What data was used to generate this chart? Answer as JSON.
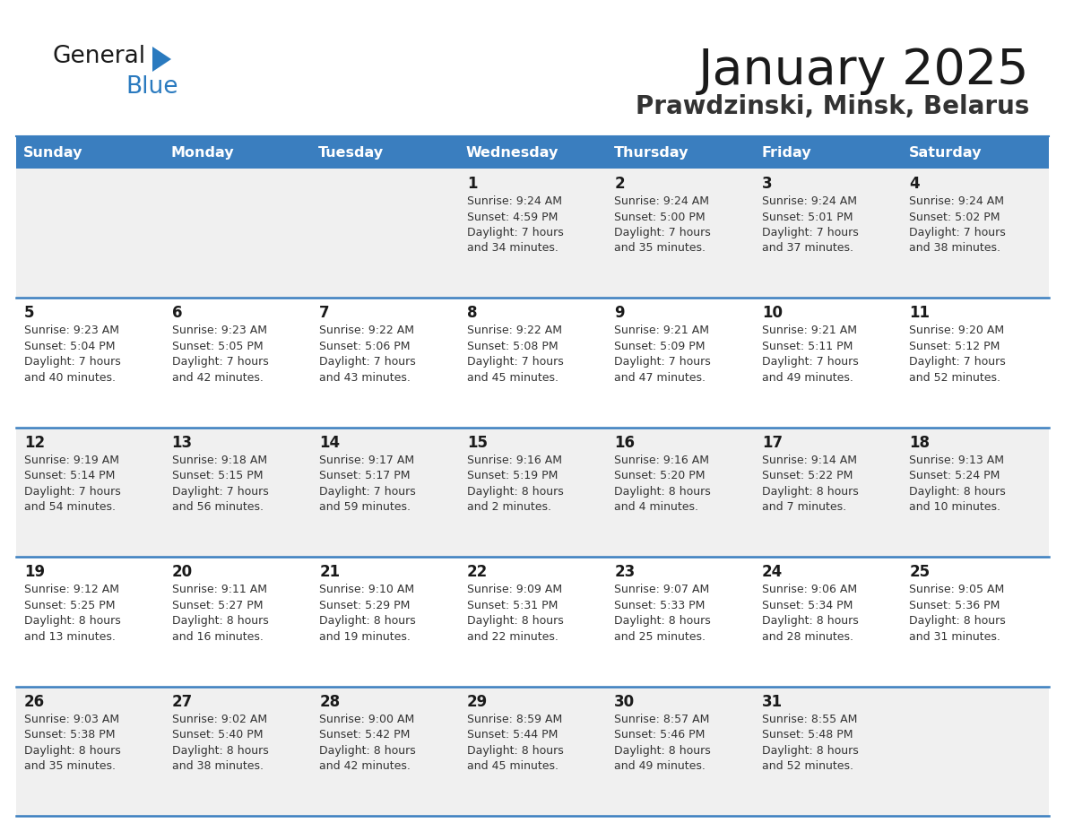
{
  "title": "January 2025",
  "subtitle": "Prawdzinski, Minsk, Belarus",
  "days_of_week": [
    "Sunday",
    "Monday",
    "Tuesday",
    "Wednesday",
    "Thursday",
    "Friday",
    "Saturday"
  ],
  "header_bg": "#3a7ebf",
  "header_text": "#ffffff",
  "cell_bg_odd": "#f0f0f0",
  "cell_bg_even": "#ffffff",
  "divider_color": "#3a7ebf",
  "text_color": "#333333",
  "title_color": "#1a1a1a",
  "subtitle_color": "#333333",
  "logo_text_color": "#1a1a1a",
  "logo_blue_color": "#2a7abf",
  "calendar_data": [
    [
      {
        "day": null,
        "sunrise": null,
        "sunset": null,
        "daylight_line1": null,
        "daylight_line2": null
      },
      {
        "day": null,
        "sunrise": null,
        "sunset": null,
        "daylight_line1": null,
        "daylight_line2": null
      },
      {
        "day": null,
        "sunrise": null,
        "sunset": null,
        "daylight_line1": null,
        "daylight_line2": null
      },
      {
        "day": "1",
        "sunrise": "9:24 AM",
        "sunset": "4:59 PM",
        "daylight_line1": "Daylight: 7 hours",
        "daylight_line2": "and 34 minutes."
      },
      {
        "day": "2",
        "sunrise": "9:24 AM",
        "sunset": "5:00 PM",
        "daylight_line1": "Daylight: 7 hours",
        "daylight_line2": "and 35 minutes."
      },
      {
        "day": "3",
        "sunrise": "9:24 AM",
        "sunset": "5:01 PM",
        "daylight_line1": "Daylight: 7 hours",
        "daylight_line2": "and 37 minutes."
      },
      {
        "day": "4",
        "sunrise": "9:24 AM",
        "sunset": "5:02 PM",
        "daylight_line1": "Daylight: 7 hours",
        "daylight_line2": "and 38 minutes."
      }
    ],
    [
      {
        "day": "5",
        "sunrise": "9:23 AM",
        "sunset": "5:04 PM",
        "daylight_line1": "Daylight: 7 hours",
        "daylight_line2": "and 40 minutes."
      },
      {
        "day": "6",
        "sunrise": "9:23 AM",
        "sunset": "5:05 PM",
        "daylight_line1": "Daylight: 7 hours",
        "daylight_line2": "and 42 minutes."
      },
      {
        "day": "7",
        "sunrise": "9:22 AM",
        "sunset": "5:06 PM",
        "daylight_line1": "Daylight: 7 hours",
        "daylight_line2": "and 43 minutes."
      },
      {
        "day": "8",
        "sunrise": "9:22 AM",
        "sunset": "5:08 PM",
        "daylight_line1": "Daylight: 7 hours",
        "daylight_line2": "and 45 minutes."
      },
      {
        "day": "9",
        "sunrise": "9:21 AM",
        "sunset": "5:09 PM",
        "daylight_line1": "Daylight: 7 hours",
        "daylight_line2": "and 47 minutes."
      },
      {
        "day": "10",
        "sunrise": "9:21 AM",
        "sunset": "5:11 PM",
        "daylight_line1": "Daylight: 7 hours",
        "daylight_line2": "and 49 minutes."
      },
      {
        "day": "11",
        "sunrise": "9:20 AM",
        "sunset": "5:12 PM",
        "daylight_line1": "Daylight: 7 hours",
        "daylight_line2": "and 52 minutes."
      }
    ],
    [
      {
        "day": "12",
        "sunrise": "9:19 AM",
        "sunset": "5:14 PM",
        "daylight_line1": "Daylight: 7 hours",
        "daylight_line2": "and 54 minutes."
      },
      {
        "day": "13",
        "sunrise": "9:18 AM",
        "sunset": "5:15 PM",
        "daylight_line1": "Daylight: 7 hours",
        "daylight_line2": "and 56 minutes."
      },
      {
        "day": "14",
        "sunrise": "9:17 AM",
        "sunset": "5:17 PM",
        "daylight_line1": "Daylight: 7 hours",
        "daylight_line2": "and 59 minutes."
      },
      {
        "day": "15",
        "sunrise": "9:16 AM",
        "sunset": "5:19 PM",
        "daylight_line1": "Daylight: 8 hours",
        "daylight_line2": "and 2 minutes."
      },
      {
        "day": "16",
        "sunrise": "9:16 AM",
        "sunset": "5:20 PM",
        "daylight_line1": "Daylight: 8 hours",
        "daylight_line2": "and 4 minutes."
      },
      {
        "day": "17",
        "sunrise": "9:14 AM",
        "sunset": "5:22 PM",
        "daylight_line1": "Daylight: 8 hours",
        "daylight_line2": "and 7 minutes."
      },
      {
        "day": "18",
        "sunrise": "9:13 AM",
        "sunset": "5:24 PM",
        "daylight_line1": "Daylight: 8 hours",
        "daylight_line2": "and 10 minutes."
      }
    ],
    [
      {
        "day": "19",
        "sunrise": "9:12 AM",
        "sunset": "5:25 PM",
        "daylight_line1": "Daylight: 8 hours",
        "daylight_line2": "and 13 minutes."
      },
      {
        "day": "20",
        "sunrise": "9:11 AM",
        "sunset": "5:27 PM",
        "daylight_line1": "Daylight: 8 hours",
        "daylight_line2": "and 16 minutes."
      },
      {
        "day": "21",
        "sunrise": "9:10 AM",
        "sunset": "5:29 PM",
        "daylight_line1": "Daylight: 8 hours",
        "daylight_line2": "and 19 minutes."
      },
      {
        "day": "22",
        "sunrise": "9:09 AM",
        "sunset": "5:31 PM",
        "daylight_line1": "Daylight: 8 hours",
        "daylight_line2": "and 22 minutes."
      },
      {
        "day": "23",
        "sunrise": "9:07 AM",
        "sunset": "5:33 PM",
        "daylight_line1": "Daylight: 8 hours",
        "daylight_line2": "and 25 minutes."
      },
      {
        "day": "24",
        "sunrise": "9:06 AM",
        "sunset": "5:34 PM",
        "daylight_line1": "Daylight: 8 hours",
        "daylight_line2": "and 28 minutes."
      },
      {
        "day": "25",
        "sunrise": "9:05 AM",
        "sunset": "5:36 PM",
        "daylight_line1": "Daylight: 8 hours",
        "daylight_line2": "and 31 minutes."
      }
    ],
    [
      {
        "day": "26",
        "sunrise": "9:03 AM",
        "sunset": "5:38 PM",
        "daylight_line1": "Daylight: 8 hours",
        "daylight_line2": "and 35 minutes."
      },
      {
        "day": "27",
        "sunrise": "9:02 AM",
        "sunset": "5:40 PM",
        "daylight_line1": "Daylight: 8 hours",
        "daylight_line2": "and 38 minutes."
      },
      {
        "day": "28",
        "sunrise": "9:00 AM",
        "sunset": "5:42 PM",
        "daylight_line1": "Daylight: 8 hours",
        "daylight_line2": "and 42 minutes."
      },
      {
        "day": "29",
        "sunrise": "8:59 AM",
        "sunset": "5:44 PM",
        "daylight_line1": "Daylight: 8 hours",
        "daylight_line2": "and 45 minutes."
      },
      {
        "day": "30",
        "sunrise": "8:57 AM",
        "sunset": "5:46 PM",
        "daylight_line1": "Daylight: 8 hours",
        "daylight_line2": "and 49 minutes."
      },
      {
        "day": "31",
        "sunrise": "8:55 AM",
        "sunset": "5:48 PM",
        "daylight_line1": "Daylight: 8 hours",
        "daylight_line2": "and 52 minutes."
      },
      {
        "day": null,
        "sunrise": null,
        "sunset": null,
        "daylight_line1": null,
        "daylight_line2": null
      }
    ]
  ]
}
